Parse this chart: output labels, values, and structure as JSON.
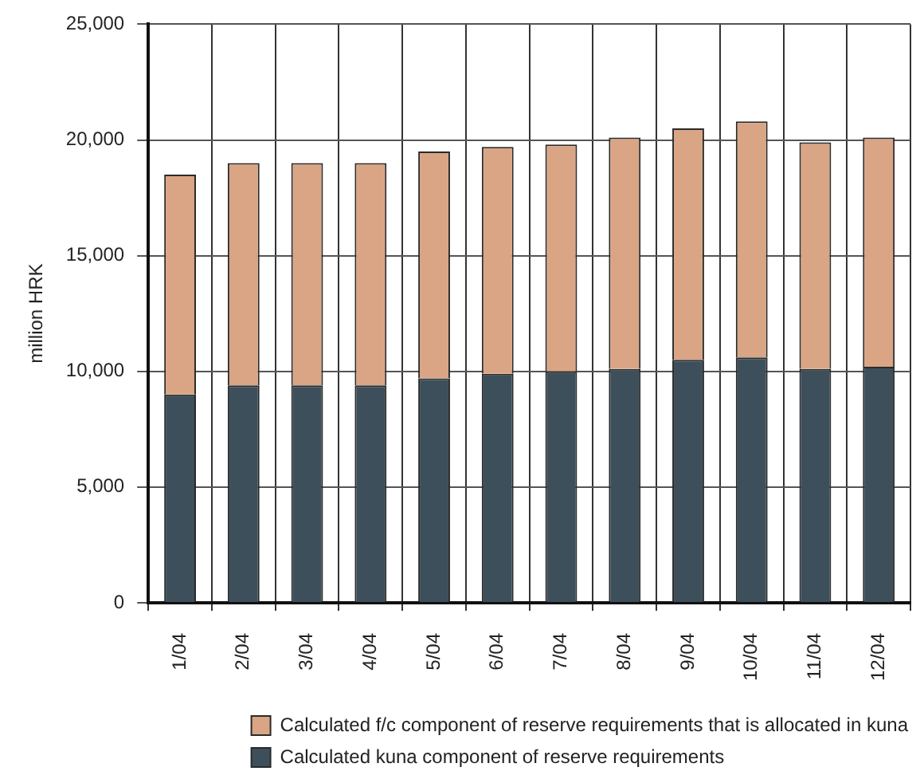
{
  "chart_data": {
    "type": "bar",
    "categories": [
      "1/04",
      "2/04",
      "3/04",
      "4/04",
      "5/04",
      "6/04",
      "7/04",
      "8/04",
      "9/04",
      "10/04",
      "11/04",
      "12/04"
    ],
    "ylabel": "million HRK",
    "stacked": true,
    "series": [
      {
        "name": "Calculated kuna component of reserve requirements",
        "color": "#3d4f5a",
        "values": [
          9000,
          9400,
          9400,
          9400,
          9700,
          9900,
          10000,
          10100,
          10500,
          10600,
          10100,
          10200
        ]
      },
      {
        "name": "Calculated f/c component of reserve requirements that is allocated in kuna",
        "color": "#d9a584",
        "values": [
          9500,
          9600,
          9600,
          9600,
          9800,
          9800,
          9800,
          10000,
          10000,
          10200,
          9800,
          9900
        ]
      }
    ],
    "ylim": [
      0,
      25000
    ],
    "yticks": [
      {
        "value": 0,
        "label": "0"
      },
      {
        "value": 5000,
        "label": "5,000"
      },
      {
        "value": 10000,
        "label": "10,000"
      },
      {
        "value": 15000,
        "label": "15,000"
      },
      {
        "value": 20000,
        "label": "20,000"
      },
      {
        "value": 25000,
        "label": "25,000"
      }
    ],
    "grid": true,
    "legend": "bottom"
  }
}
